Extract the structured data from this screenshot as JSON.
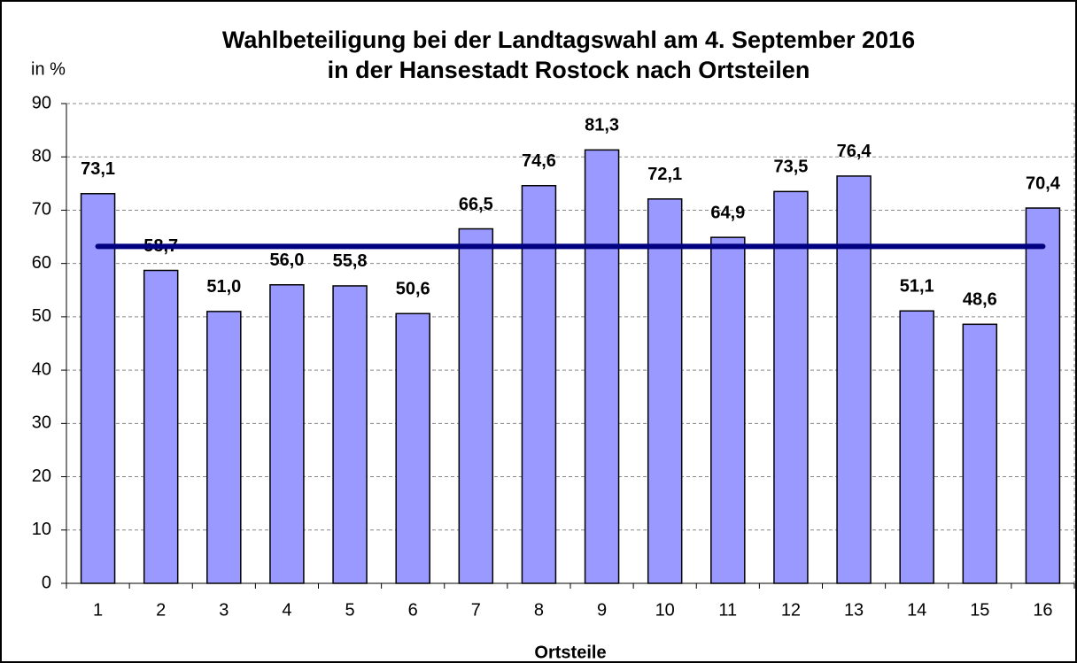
{
  "chart_data": {
    "type": "bar",
    "title": [
      "Wahlbeteiligung bei der Landtagswahl am 4. September 2016",
      "in der Hansestadt Rostock nach Ortsteilen"
    ],
    "y_axis_label": "in %",
    "x_axis_label": "Ortsteile",
    "categories": [
      "1",
      "2",
      "3",
      "4",
      "5",
      "6",
      "7",
      "8",
      "9",
      "10",
      "11",
      "12",
      "13",
      "14",
      "15",
      "16"
    ],
    "values": [
      73.1,
      58.7,
      51.0,
      56.0,
      55.8,
      50.6,
      66.5,
      74.6,
      81.3,
      72.1,
      64.9,
      73.5,
      76.4,
      51.1,
      48.6,
      70.4
    ],
    "value_labels": [
      "73,1",
      "58,7",
      "51,0",
      "56,0",
      "55,8",
      "50,6",
      "66,5",
      "74,6",
      "81,3",
      "72,1",
      "64,9",
      "73,5",
      "76,4",
      "51,1",
      "48,6",
      "70,4"
    ],
    "color": "#9999ff",
    "reference_line": {
      "value": 63.2,
      "color": "#000080"
    },
    "ylim": [
      0,
      90
    ],
    "yticks": [
      0,
      10,
      20,
      30,
      40,
      50,
      60,
      70,
      80,
      90
    ],
    "grid": true
  }
}
